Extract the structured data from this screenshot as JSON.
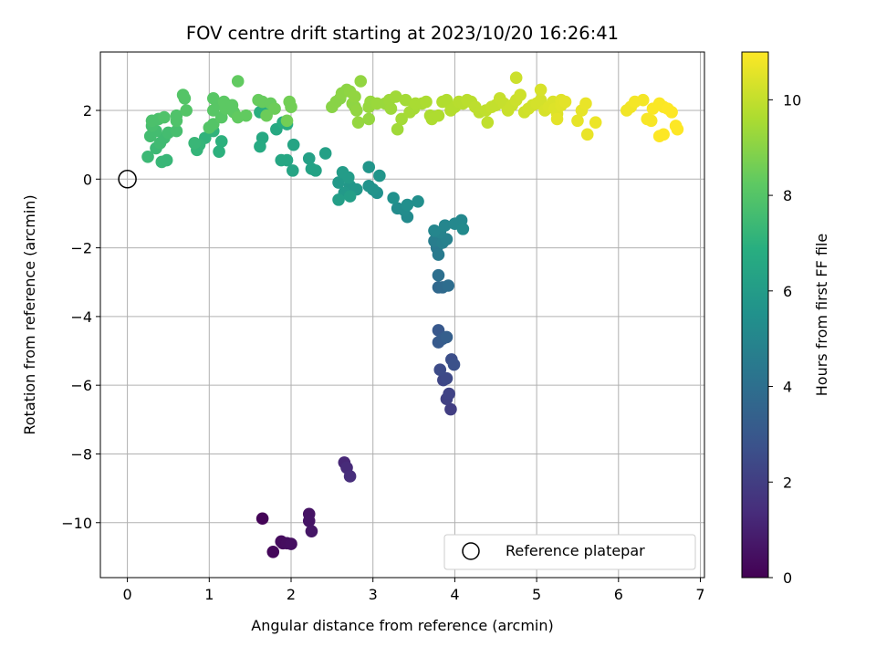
{
  "chart_data": {
    "type": "scatter",
    "title": "FOV centre drift starting at 2023/10/20 16:26:41",
    "xlabel": "Angular distance from reference (arcmin)",
    "ylabel": "Rotation from reference (arcmin)",
    "xlim": [
      -0.33,
      7.05
    ],
    "ylim": [
      -11.6,
      3.7
    ],
    "xticks": [
      0,
      1,
      2,
      3,
      4,
      5,
      6,
      7
    ],
    "yticks": [
      -10,
      -8,
      -6,
      -4,
      -2,
      0,
      2
    ],
    "grid": true,
    "legend": {
      "location": "lower-right",
      "entries": [
        "Reference platepar"
      ]
    },
    "reference_point": {
      "x": 0,
      "y": 0
    },
    "colorbar": {
      "label": "Hours from first FF file",
      "range": [
        0,
        11
      ],
      "ticks": [
        0,
        2,
        4,
        6,
        8,
        10
      ],
      "colormap": "viridis"
    },
    "series": [
      {
        "columns": [
          "x",
          "y",
          "hours"
        ],
        "points": [
          [
            1.65,
            -9.88,
            0.1
          ],
          [
            1.78,
            -10.85,
            0.2
          ],
          [
            1.88,
            -10.55,
            0.3
          ],
          [
            1.9,
            -10.6,
            0.35
          ],
          [
            1.95,
            -10.6,
            0.4
          ],
          [
            2.0,
            -10.62,
            0.45
          ],
          [
            2.22,
            -9.75,
            0.55
          ],
          [
            2.22,
            -9.95,
            0.6
          ],
          [
            2.25,
            -10.25,
            0.65
          ],
          [
            2.65,
            -8.25,
            1.2
          ],
          [
            2.68,
            -8.4,
            1.3
          ],
          [
            2.72,
            -8.65,
            1.4
          ],
          [
            3.95,
            -6.7,
            2.0
          ],
          [
            3.9,
            -6.4,
            2.1
          ],
          [
            3.93,
            -6.25,
            2.2
          ],
          [
            3.86,
            -5.85,
            2.3
          ],
          [
            3.9,
            -5.8,
            2.4
          ],
          [
            3.82,
            -5.55,
            2.5
          ],
          [
            3.96,
            -5.25,
            2.6
          ],
          [
            3.99,
            -5.4,
            2.7
          ],
          [
            3.8,
            -4.4,
            3.0
          ],
          [
            3.8,
            -4.75,
            3.1
          ],
          [
            3.85,
            -4.65,
            3.2
          ],
          [
            3.9,
            -4.6,
            3.3
          ],
          [
            3.8,
            -3.15,
            3.7
          ],
          [
            3.85,
            -3.15,
            3.8
          ],
          [
            3.92,
            -3.1,
            3.9
          ],
          [
            3.8,
            -2.8,
            4.0
          ],
          [
            3.78,
            -2.0,
            4.4
          ],
          [
            3.8,
            -2.2,
            4.5
          ],
          [
            3.75,
            -1.8,
            4.6
          ],
          [
            3.85,
            -1.85,
            4.7
          ],
          [
            3.9,
            -1.75,
            4.8
          ],
          [
            3.82,
            -1.55,
            4.9
          ],
          [
            3.75,
            -1.5,
            5.0
          ],
          [
            3.88,
            -1.35,
            5.0
          ],
          [
            4.0,
            -1.3,
            5.1
          ],
          [
            4.08,
            -1.2,
            5.1
          ],
          [
            4.1,
            -1.45,
            5.2
          ],
          [
            3.42,
            -1.1,
            5.2
          ],
          [
            3.38,
            -0.9,
            5.3
          ],
          [
            3.3,
            -0.85,
            5.3
          ],
          [
            3.42,
            -0.75,
            5.4
          ],
          [
            3.55,
            -0.65,
            5.4
          ],
          [
            3.25,
            -0.55,
            5.5
          ],
          [
            3.05,
            -0.4,
            5.5
          ],
          [
            3.0,
            -0.3,
            5.6
          ],
          [
            2.95,
            -0.2,
            5.6
          ],
          [
            3.08,
            0.1,
            5.7
          ],
          [
            2.95,
            0.35,
            5.7
          ],
          [
            2.72,
            -0.2,
            5.8
          ],
          [
            2.8,
            -0.3,
            5.8
          ],
          [
            2.65,
            -0.4,
            5.9
          ],
          [
            2.58,
            -0.1,
            5.9
          ],
          [
            2.63,
            0.2,
            6.0
          ],
          [
            2.7,
            0.05,
            6.0
          ],
          [
            2.72,
            -0.5,
            6.1
          ],
          [
            2.58,
            -0.6,
            6.1
          ],
          [
            2.42,
            0.75,
            6.2
          ],
          [
            2.22,
            0.6,
            6.2
          ],
          [
            2.25,
            0.3,
            6.3
          ],
          [
            2.3,
            0.25,
            6.3
          ],
          [
            2.02,
            0.25,
            6.4
          ],
          [
            2.03,
            1.0,
            6.4
          ],
          [
            1.95,
            0.55,
            6.5
          ],
          [
            1.88,
            0.55,
            6.5
          ],
          [
            1.82,
            1.45,
            6.6
          ],
          [
            1.65,
            1.2,
            6.6
          ],
          [
            1.62,
            0.95,
            6.7
          ],
          [
            1.9,
            1.65,
            6.8
          ],
          [
            1.95,
            1.6,
            6.8
          ],
          [
            1.62,
            1.95,
            6.9
          ],
          [
            1.72,
            2.0,
            6.9
          ],
          [
            1.15,
            1.1,
            7.0
          ],
          [
            1.12,
            0.8,
            7.0
          ],
          [
            1.05,
            1.4,
            7.1
          ],
          [
            0.95,
            1.2,
            7.1
          ],
          [
            0.88,
            1.0,
            7.2
          ],
          [
            0.85,
            0.85,
            7.2
          ],
          [
            0.82,
            1.05,
            7.3
          ],
          [
            0.42,
            0.5,
            7.3
          ],
          [
            0.48,
            0.55,
            7.3
          ],
          [
            0.25,
            0.65,
            7.4
          ],
          [
            0.35,
            0.9,
            7.4
          ],
          [
            0.4,
            1.05,
            7.5
          ],
          [
            0.45,
            1.2,
            7.5
          ],
          [
            0.28,
            1.25,
            7.6
          ],
          [
            0.35,
            1.4,
            7.6
          ],
          [
            0.5,
            1.35,
            7.6
          ],
          [
            0.6,
            1.4,
            7.7
          ],
          [
            0.3,
            1.55,
            7.7
          ],
          [
            0.3,
            1.7,
            7.8
          ],
          [
            0.38,
            1.75,
            7.8
          ],
          [
            0.45,
            1.8,
            7.9
          ],
          [
            0.6,
            1.7,
            7.9
          ],
          [
            0.6,
            1.85,
            7.9
          ],
          [
            0.72,
            2.0,
            8.0
          ],
          [
            0.68,
            2.45,
            8.0
          ],
          [
            0.7,
            2.35,
            8.0
          ],
          [
            1.0,
            1.5,
            8.0
          ],
          [
            1.05,
            1.6,
            8.0
          ],
          [
            1.15,
            1.8,
            8.1
          ],
          [
            1.05,
            2.0,
            8.1
          ],
          [
            1.1,
            2.2,
            8.1
          ],
          [
            1.05,
            2.35,
            8.1
          ],
          [
            1.2,
            2.05,
            8.2
          ],
          [
            1.18,
            2.25,
            8.2
          ],
          [
            1.28,
            2.15,
            8.2
          ],
          [
            1.3,
            1.95,
            8.2
          ],
          [
            1.35,
            1.8,
            8.3
          ],
          [
            1.45,
            1.85,
            8.3
          ],
          [
            1.35,
            2.85,
            8.3
          ],
          [
            1.6,
            2.3,
            8.4
          ],
          [
            1.65,
            2.25,
            8.4
          ],
          [
            1.75,
            2.2,
            8.4
          ],
          [
            1.7,
            1.85,
            8.5
          ],
          [
            1.8,
            2.05,
            8.5
          ],
          [
            1.98,
            2.25,
            8.6
          ],
          [
            2.0,
            2.1,
            8.6
          ],
          [
            1.95,
            1.7,
            8.6
          ],
          [
            2.5,
            2.1,
            9.0
          ],
          [
            2.55,
            2.25,
            9.0
          ],
          [
            2.6,
            2.35,
            9.0
          ],
          [
            2.62,
            2.5,
            9.05
          ],
          [
            2.68,
            2.6,
            9.05
          ],
          [
            2.72,
            2.55,
            9.1
          ],
          [
            2.75,
            2.2,
            9.1
          ],
          [
            2.78,
            2.1,
            9.1
          ],
          [
            2.8,
            2.0,
            9.15
          ],
          [
            2.78,
            2.4,
            9.15
          ],
          [
            2.85,
            2.85,
            9.15
          ],
          [
            2.82,
            1.65,
            9.2
          ],
          [
            2.95,
            1.75,
            9.2
          ],
          [
            2.95,
            2.1,
            9.25
          ],
          [
            2.97,
            2.25,
            9.25
          ],
          [
            3.05,
            2.2,
            9.3
          ],
          [
            3.15,
            2.2,
            9.3
          ],
          [
            3.2,
            2.3,
            9.35
          ],
          [
            3.22,
            2.05,
            9.35
          ],
          [
            3.28,
            2.4,
            9.4
          ],
          [
            3.3,
            1.45,
            9.4
          ],
          [
            3.35,
            1.75,
            9.45
          ],
          [
            3.4,
            2.3,
            9.45
          ],
          [
            3.45,
            1.95,
            9.5
          ],
          [
            3.5,
            2.05,
            9.5
          ],
          [
            3.52,
            2.2,
            9.55
          ],
          [
            3.6,
            2.2,
            9.55
          ],
          [
            3.65,
            2.25,
            9.6
          ],
          [
            3.7,
            1.85,
            9.6
          ],
          [
            3.72,
            1.75,
            9.65
          ],
          [
            3.8,
            1.85,
            9.65
          ],
          [
            3.85,
            2.25,
            9.7
          ],
          [
            3.9,
            2.3,
            9.7
          ],
          [
            3.95,
            2.0,
            9.75
          ],
          [
            4.0,
            2.1,
            9.75
          ],
          [
            4.05,
            2.25,
            9.8
          ],
          [
            4.1,
            2.2,
            9.8
          ],
          [
            4.15,
            2.3,
            9.85
          ],
          [
            4.2,
            2.25,
            9.85
          ],
          [
            4.25,
            2.1,
            9.9
          ],
          [
            4.3,
            1.95,
            9.9
          ],
          [
            4.38,
            2.0,
            9.95
          ],
          [
            4.4,
            1.65,
            9.95
          ],
          [
            4.45,
            2.1,
            10.0
          ],
          [
            4.5,
            2.15,
            10.0
          ],
          [
            4.55,
            2.35,
            10.05
          ],
          [
            4.6,
            2.2,
            10.05
          ],
          [
            4.65,
            2.0,
            10.1
          ],
          [
            4.7,
            2.15,
            10.1
          ],
          [
            4.75,
            2.3,
            10.15
          ],
          [
            4.75,
            2.95,
            10.15
          ],
          [
            4.8,
            2.45,
            10.2
          ],
          [
            4.85,
            1.95,
            10.2
          ],
          [
            4.9,
            2.05,
            10.25
          ],
          [
            4.95,
            2.15,
            10.25
          ],
          [
            5.0,
            2.2,
            10.3
          ],
          [
            5.05,
            2.3,
            10.3
          ],
          [
            5.05,
            2.6,
            10.35
          ],
          [
            5.1,
            2.0,
            10.35
          ],
          [
            5.15,
            2.1,
            10.4
          ],
          [
            5.2,
            2.25,
            10.4
          ],
          [
            5.22,
            2.05,
            10.45
          ],
          [
            5.25,
            1.9,
            10.45
          ],
          [
            5.3,
            2.15,
            10.5
          ],
          [
            5.3,
            2.3,
            10.5
          ],
          [
            5.35,
            2.25,
            10.55
          ],
          [
            5.25,
            1.75,
            10.55
          ],
          [
            5.5,
            1.7,
            10.6
          ],
          [
            5.55,
            2.0,
            10.6
          ],
          [
            5.6,
            2.2,
            10.65
          ],
          [
            5.62,
            1.3,
            10.65
          ],
          [
            5.72,
            1.65,
            10.7
          ],
          [
            6.1,
            2.0,
            10.8
          ],
          [
            6.15,
            2.1,
            10.8
          ],
          [
            6.2,
            2.25,
            10.85
          ],
          [
            6.3,
            2.3,
            10.85
          ],
          [
            6.35,
            1.75,
            10.9
          ],
          [
            6.4,
            1.7,
            10.9
          ],
          [
            6.42,
            2.05,
            10.95
          ],
          [
            6.5,
            2.2,
            10.95
          ],
          [
            6.55,
            2.1,
            10.95
          ],
          [
            6.5,
            1.25,
            11.0
          ],
          [
            6.55,
            1.3,
            11.0
          ],
          [
            6.6,
            2.05,
            11.0
          ],
          [
            6.65,
            1.95,
            11.0
          ],
          [
            6.7,
            1.55,
            11.0
          ],
          [
            6.72,
            1.45,
            11.0
          ]
        ]
      }
    ]
  }
}
